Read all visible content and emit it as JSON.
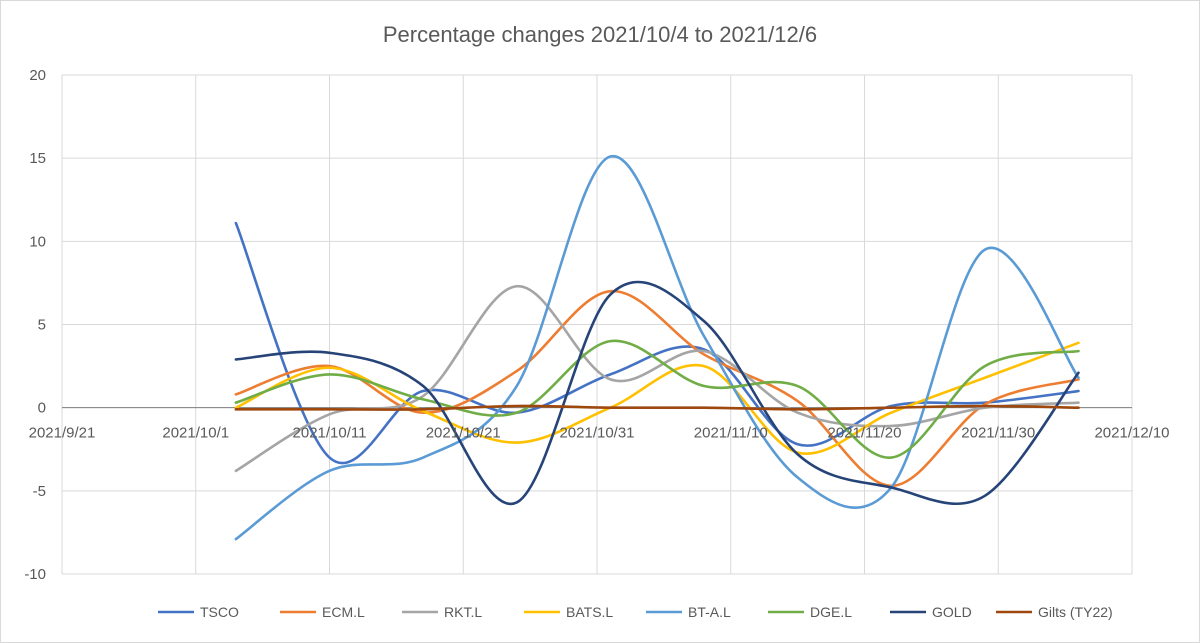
{
  "chart_data": {
    "type": "line",
    "title": "Percentage changes 2021/10/4 to 2021/12/6",
    "xlabel": "",
    "ylabel": "",
    "ylim": [
      -10,
      20
    ],
    "yticks": [
      -10,
      -5,
      0,
      5,
      10,
      15,
      20
    ],
    "xlim": [
      "2021-09-21",
      "2021-12-10"
    ],
    "xticks": [
      "2021-09-21",
      "2021-10-01",
      "2021-10-11",
      "2021-10-21",
      "2021-10-31",
      "2021-11-10",
      "2021-11-20",
      "2021-11-30",
      "2021-12-10"
    ],
    "xtick_labels": [
      "2021/9/21",
      "2021/10/1",
      "2021/10/11",
      "2021/10/21",
      "2021/10/31",
      "2021/11/10",
      "2021/11/20",
      "2021/11/30",
      "2021/12/10"
    ],
    "x": [
      "2021-10-04",
      "2021-10-11",
      "2021-10-18",
      "2021-10-25",
      "2021-11-01",
      "2021-11-08",
      "2021-11-15",
      "2021-11-22",
      "2021-11-29",
      "2021-12-06"
    ],
    "grid": true,
    "legend_position": "bottom",
    "series": [
      {
        "name": "TSCO",
        "color": "#4472C4",
        "values": [
          11.1,
          -3.0,
          1.0,
          -0.3,
          2.0,
          3.5,
          -2.2,
          0.1,
          0.3,
          1.0
        ]
      },
      {
        "name": "ECM.L",
        "color": "#ED7D31",
        "values": [
          0.8,
          2.5,
          -0.3,
          2.2,
          7.0,
          3.2,
          0.4,
          -4.7,
          0.2,
          1.7
        ]
      },
      {
        "name": "RKT.L",
        "color": "#A5A5A5",
        "values": [
          -3.8,
          -0.4,
          0.7,
          7.3,
          1.7,
          3.4,
          -0.3,
          -1.1,
          0.0,
          0.3
        ]
      },
      {
        "name": "BATS.L",
        "color": "#FFC000",
        "values": [
          0.0,
          2.4,
          -0.2,
          -2.1,
          0.0,
          2.5,
          -2.7,
          -0.3,
          1.8,
          3.9
        ]
      },
      {
        "name": "BT-A.L",
        "color": "#5B9BD5",
        "values": [
          -7.9,
          -3.8,
          -3.0,
          1.3,
          15.1,
          4.3,
          -4.2,
          -4.8,
          9.5,
          1.8
        ]
      },
      {
        "name": "DGE.L",
        "color": "#70AD47",
        "values": [
          0.3,
          2.0,
          0.5,
          -0.3,
          4.0,
          1.3,
          1.3,
          -3.0,
          2.5,
          3.4
        ]
      },
      {
        "name": "GOLD",
        "color": "#264478",
        "values": [
          2.9,
          3.3,
          1.3,
          -5.7,
          6.8,
          5.2,
          -2.8,
          -4.8,
          -5.3,
          2.1
        ]
      },
      {
        "name": "Gilts (TY22)",
        "color": "#9E480E",
        "values": [
          -0.1,
          -0.1,
          -0.1,
          0.1,
          0.0,
          0.0,
          -0.1,
          0.0,
          0.1,
          0.0
        ]
      }
    ]
  }
}
